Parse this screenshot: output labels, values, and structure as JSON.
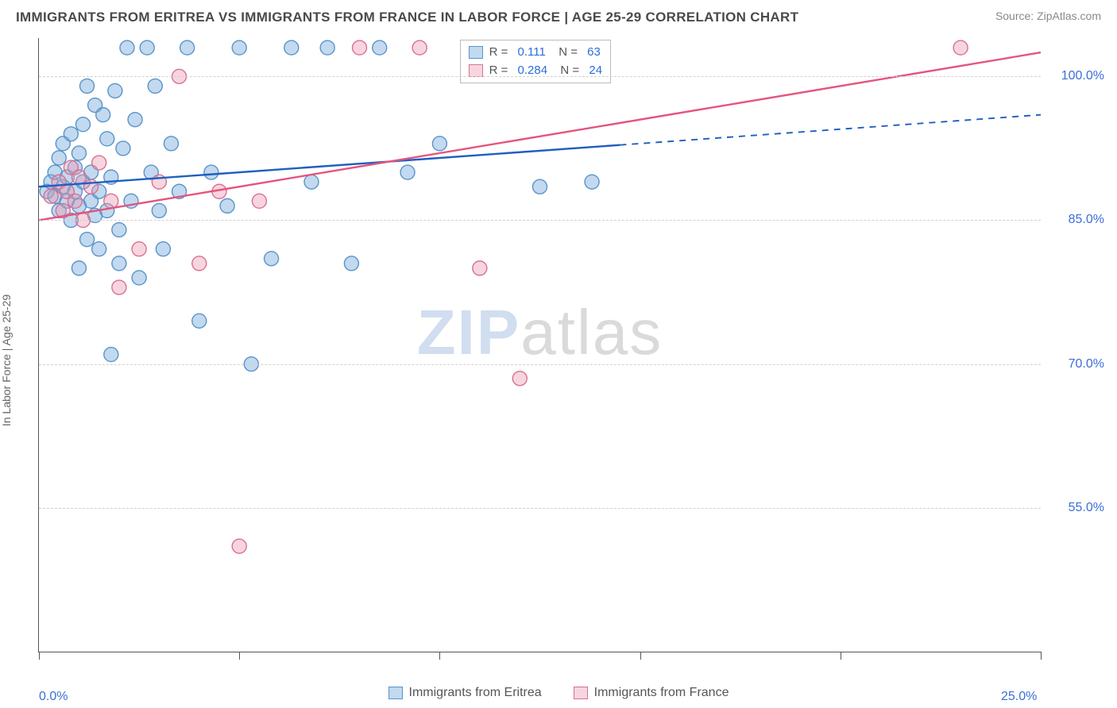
{
  "title": "IMMIGRANTS FROM ERITREA VS IMMIGRANTS FROM FRANCE IN LABOR FORCE | AGE 25-29 CORRELATION CHART",
  "source": "Source: ZipAtlas.com",
  "y_axis_label": "In Labor Force | Age 25-29",
  "watermark_a": "ZIP",
  "watermark_b": "atlas",
  "chart": {
    "type": "scatter",
    "background_color": "#ffffff",
    "grid_color": "#d0d0d0",
    "axis_color": "#555555",
    "tick_label_color": "#3b6fd6",
    "xlim": [
      0.0,
      25.0
    ],
    "ylim": [
      40.0,
      104.0
    ],
    "y_ticks": [
      55.0,
      70.0,
      85.0,
      100.0
    ],
    "y_tick_labels": [
      "55.0%",
      "70.0%",
      "85.0%",
      "100.0%"
    ],
    "x_ticks": [
      0.0,
      5.0,
      10.0,
      15.0,
      20.0,
      25.0
    ],
    "x_tick_labels_shown": {
      "0.0": "0.0%",
      "25.0": "25.0%"
    },
    "marker_radius": 9,
    "marker_stroke_width": 1.4,
    "trend_line_width": 2.4,
    "series": [
      {
        "id": "eritrea",
        "label": "Immigrants from Eritrea",
        "fill": "rgba(120,170,220,0.45)",
        "stroke": "#5a93c9",
        "line_solid_color": "#1f5fc0",
        "line_dash_color": "#1f5fc0",
        "R": "0.111",
        "N": "63",
        "trend": {
          "x0": 0.0,
          "y0": 88.5,
          "x1": 25.0,
          "y1": 96.0,
          "solid_until_x": 14.5
        },
        "points": [
          [
            0.2,
            88.0
          ],
          [
            0.3,
            89.0
          ],
          [
            0.4,
            87.5
          ],
          [
            0.4,
            90.0
          ],
          [
            0.5,
            86.0
          ],
          [
            0.5,
            91.5
          ],
          [
            0.6,
            88.5
          ],
          [
            0.6,
            93.0
          ],
          [
            0.7,
            89.5
          ],
          [
            0.7,
            87.0
          ],
          [
            0.8,
            94.0
          ],
          [
            0.8,
            85.0
          ],
          [
            0.9,
            90.5
          ],
          [
            0.9,
            88.0
          ],
          [
            1.0,
            92.0
          ],
          [
            1.0,
            86.5
          ],
          [
            1.0,
            80.0
          ],
          [
            1.1,
            95.0
          ],
          [
            1.1,
            89.0
          ],
          [
            1.2,
            83.0
          ],
          [
            1.2,
            99.0
          ],
          [
            1.3,
            87.0
          ],
          [
            1.3,
            90.0
          ],
          [
            1.4,
            97.0
          ],
          [
            1.4,
            85.5
          ],
          [
            1.5,
            88.0
          ],
          [
            1.5,
            82.0
          ],
          [
            1.6,
            96.0
          ],
          [
            1.7,
            93.5
          ],
          [
            1.7,
            86.0
          ],
          [
            1.8,
            89.5
          ],
          [
            1.8,
            71.0
          ],
          [
            1.9,
            98.5
          ],
          [
            2.0,
            84.0
          ],
          [
            2.0,
            80.5
          ],
          [
            2.1,
            92.5
          ],
          [
            2.2,
            103.0
          ],
          [
            2.3,
            87.0
          ],
          [
            2.4,
            95.5
          ],
          [
            2.5,
            79.0
          ],
          [
            2.7,
            103.0
          ],
          [
            2.8,
            90.0
          ],
          [
            2.9,
            99.0
          ],
          [
            3.0,
            86.0
          ],
          [
            3.1,
            82.0
          ],
          [
            3.3,
            93.0
          ],
          [
            3.5,
            88.0
          ],
          [
            3.7,
            103.0
          ],
          [
            4.0,
            74.5
          ],
          [
            4.3,
            90.0
          ],
          [
            4.7,
            86.5
          ],
          [
            5.0,
            103.0
          ],
          [
            5.3,
            70.0
          ],
          [
            5.8,
            81.0
          ],
          [
            6.3,
            103.0
          ],
          [
            6.8,
            89.0
          ],
          [
            7.2,
            103.0
          ],
          [
            7.8,
            80.5
          ],
          [
            8.5,
            103.0
          ],
          [
            9.2,
            90.0
          ],
          [
            10.0,
            93.0
          ],
          [
            12.5,
            88.5
          ],
          [
            13.8,
            89.0
          ]
        ]
      },
      {
        "id": "france",
        "label": "Immigrants from France",
        "fill": "rgba(235,150,175,0.40)",
        "stroke": "#d96f92",
        "line_solid_color": "#e5547d",
        "line_dash_color": "#e5547d",
        "R": "0.284",
        "N": "24",
        "trend": {
          "x0": 0.0,
          "y0": 85.0,
          "x1": 25.0,
          "y1": 102.5,
          "solid_until_x": 25.0
        },
        "points": [
          [
            0.3,
            87.5
          ],
          [
            0.5,
            89.0
          ],
          [
            0.6,
            86.0
          ],
          [
            0.7,
            88.0
          ],
          [
            0.8,
            90.5
          ],
          [
            0.9,
            87.0
          ],
          [
            1.0,
            89.5
          ],
          [
            1.1,
            85.0
          ],
          [
            1.3,
            88.5
          ],
          [
            1.5,
            91.0
          ],
          [
            1.8,
            87.0
          ],
          [
            2.0,
            78.0
          ],
          [
            2.5,
            82.0
          ],
          [
            3.0,
            89.0
          ],
          [
            3.5,
            100.0
          ],
          [
            4.0,
            80.5
          ],
          [
            4.5,
            88.0
          ],
          [
            5.0,
            51.0
          ],
          [
            5.5,
            87.0
          ],
          [
            8.0,
            103.0
          ],
          [
            9.5,
            103.0
          ],
          [
            11.0,
            80.0
          ],
          [
            12.0,
            68.5
          ],
          [
            23.0,
            103.0
          ]
        ]
      }
    ],
    "stats_legend": {
      "label_R": "R =",
      "label_N": "N ="
    }
  },
  "bottom_legend": [
    {
      "series": "eritrea"
    },
    {
      "series": "france"
    }
  ]
}
